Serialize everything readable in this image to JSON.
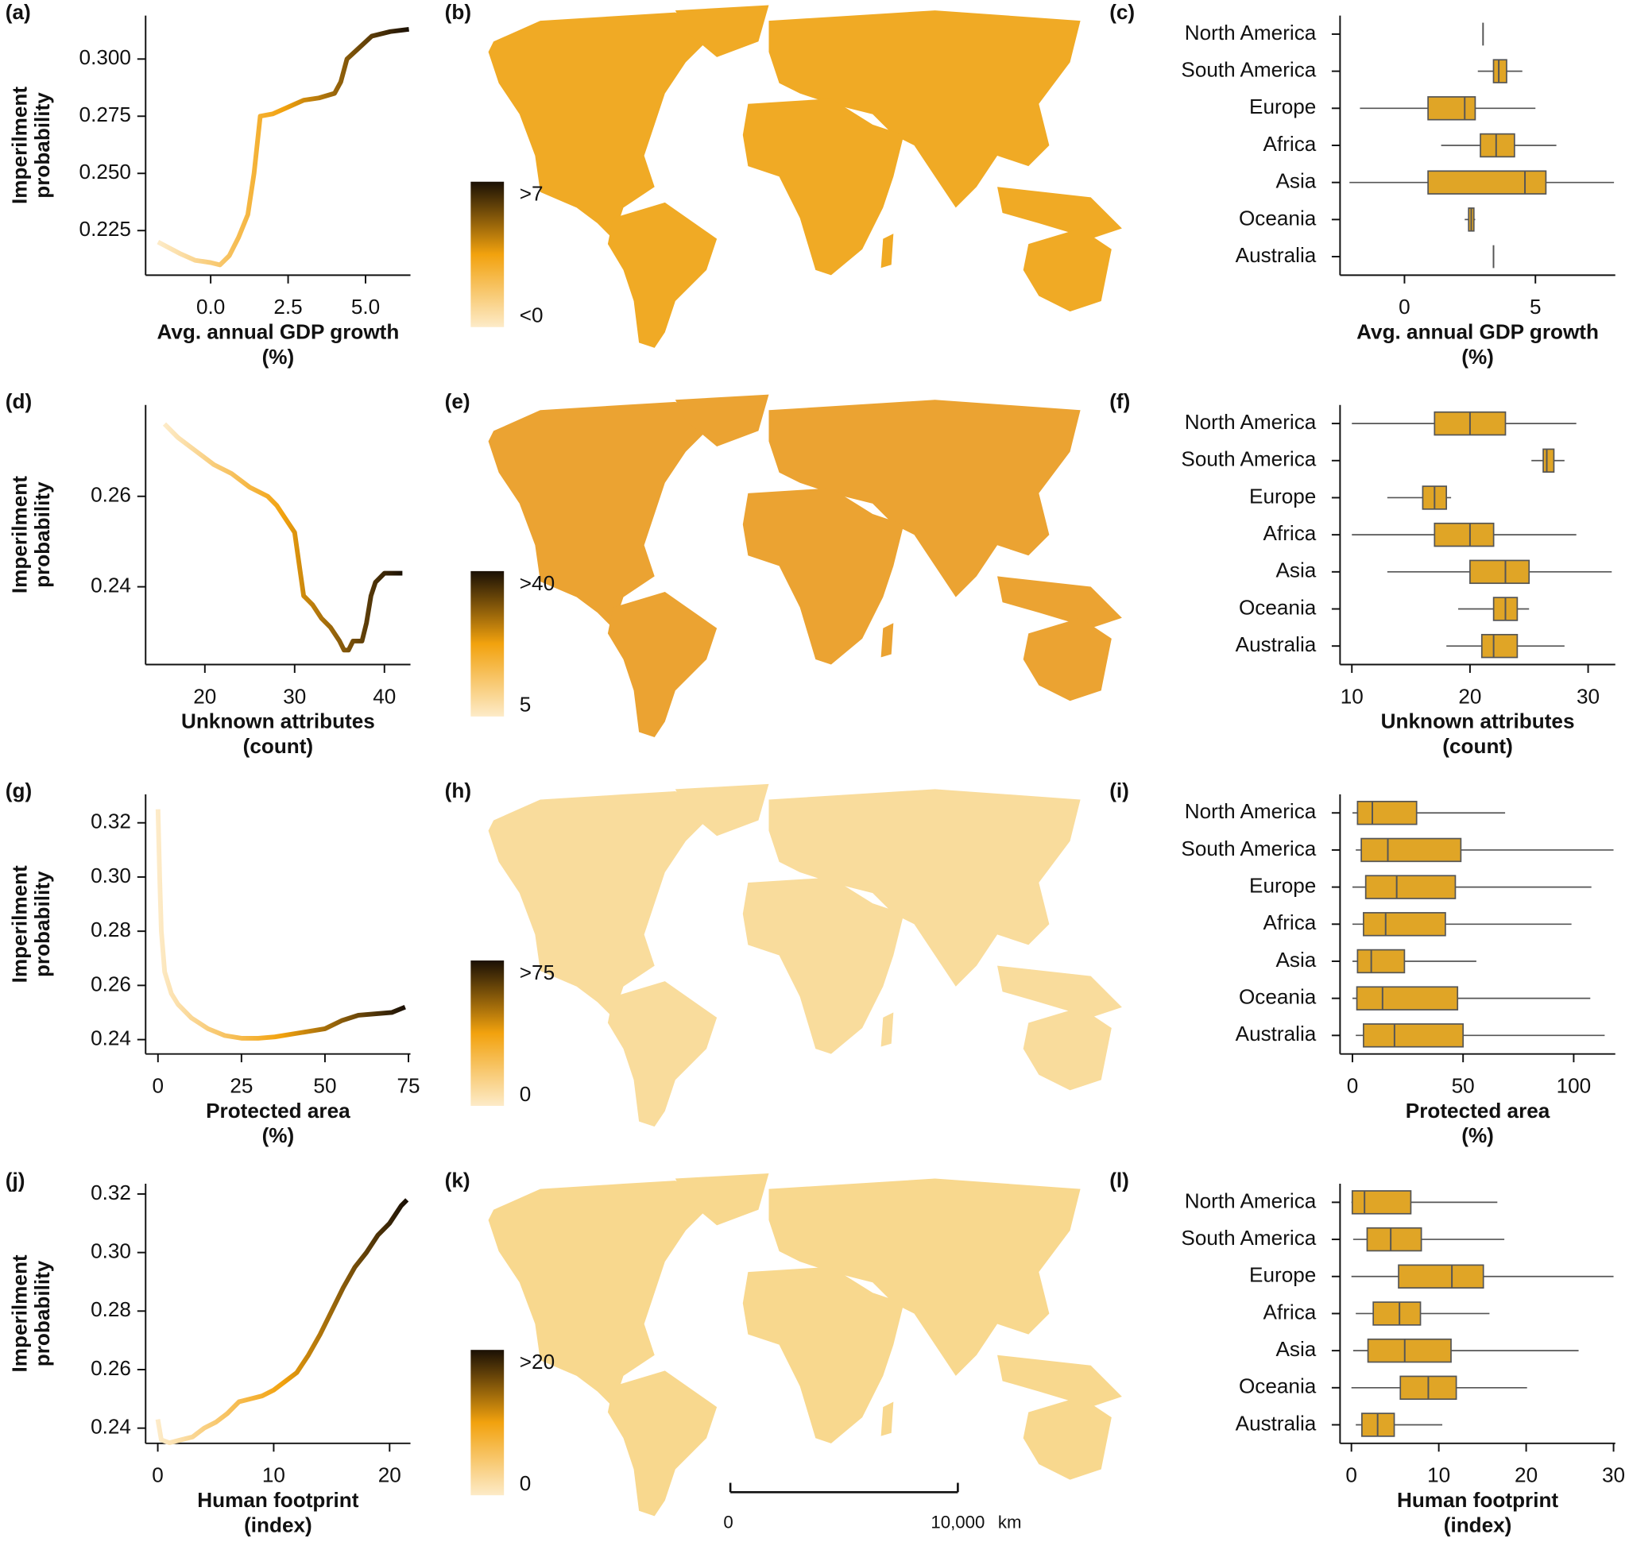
{
  "chart_data": [
    {
      "type": "line",
      "label": "(a)",
      "xlabel": [
        "Avg. annual GDP growth",
        "(%)"
      ],
      "ylabel": [
        "Imperilment",
        "probability"
      ],
      "x": [
        -1.7,
        -1.0,
        -0.5,
        0,
        0.3,
        0.6,
        0.9,
        1.2,
        1.4,
        1.6,
        2.0,
        2.5,
        3.0,
        3.5,
        4.0,
        4.2,
        4.4,
        4.8,
        5.2,
        5.8,
        6.4
      ],
      "values": [
        0.22,
        0.215,
        0.212,
        0.211,
        0.21,
        0.214,
        0.222,
        0.232,
        0.25,
        0.275,
        0.276,
        0.279,
        0.282,
        0.283,
        0.285,
        0.29,
        0.3,
        0.305,
        0.31,
        0.312,
        0.313
      ],
      "xlim": [
        -2.1,
        6.45
      ],
      "ylim": [
        0.2055,
        0.319
      ],
      "xticks": [
        {
          "value": 0,
          "label": "0.0"
        },
        2.5,
        {
          "value": 5,
          "label": "5.0"
        }
      ],
      "yticks": [
        0.225,
        {
          "value": 0.25,
          "label": "0.250"
        },
        0.275,
        {
          "value": 0.3,
          "label": "0.300"
        }
      ],
      "colormap": [
        "#fdebc8",
        "#f2a20e",
        "#1a1005"
      ]
    },
    {
      "type": "map",
      "label": "(b)",
      "colorbar_labels": [
        ">7",
        "<0"
      ],
      "colormap": [
        "#fdebc8",
        "#f2a20e",
        "#1a1005"
      ],
      "color": "#f0aa25"
    },
    {
      "type": "box",
      "label": "(c)",
      "xlabel": [
        "Avg. annual GDP growth",
        "(%)"
      ],
      "categories": [
        "North America",
        "South America",
        "Europe",
        "Africa",
        "Asia",
        "Oceania",
        "Australia"
      ],
      "min": [
        3.0,
        2.8,
        -1.7,
        1.4,
        -2.1,
        2.3,
        3.4
      ],
      "q1": [
        3.0,
        3.4,
        0.9,
        2.9,
        0.9,
        2.45,
        3.4
      ],
      "median": [
        3.0,
        3.6,
        2.3,
        3.5,
        4.6,
        2.55,
        3.4
      ],
      "q3": [
        3.0,
        3.9,
        2.7,
        4.2,
        5.4,
        2.65,
        3.4
      ],
      "max": [
        3.0,
        4.5,
        5.0,
        5.8,
        8.0,
        2.7,
        3.4
      ],
      "xlim": [
        -2.46,
        8.05
      ],
      "xticks": [
        0,
        5
      ],
      "color": "#e0a526"
    },
    {
      "type": "line",
      "label": "(d)",
      "xlabel": [
        "Unknown attributes",
        "(count)"
      ],
      "ylabel": [
        "Imperilment",
        "probability"
      ],
      "x": [
        15.5,
        17,
        19,
        21,
        23,
        25,
        27,
        28,
        29,
        30,
        30.5,
        31,
        32,
        33,
        34,
        35,
        35.5,
        36,
        36.5,
        37.5,
        38,
        38.5,
        39,
        40,
        42
      ],
      "values": [
        0.276,
        0.273,
        0.27,
        0.267,
        0.265,
        0.262,
        0.26,
        0.258,
        0.255,
        0.252,
        0.245,
        0.238,
        0.236,
        0.233,
        0.231,
        0.228,
        0.226,
        0.226,
        0.228,
        0.228,
        0.232,
        0.238,
        0.241,
        0.243,
        0.243
      ],
      "xlim": [
        13.4,
        42.9
      ],
      "ylim": [
        0.2228,
        0.2802
      ],
      "xticks": [
        20,
        30,
        40
      ],
      "yticks": [
        0.24,
        0.26
      ],
      "colormap": [
        "#fdebc8",
        "#f2a20e",
        "#1a1005"
      ]
    },
    {
      "type": "map",
      "label": "(e)",
      "colorbar_labels": [
        ">40",
        "5"
      ],
      "colormap": [
        "#fdebc8",
        "#f2a20e",
        "#1a1005"
      ],
      "color": "#eba332"
    },
    {
      "type": "box",
      "label": "(f)",
      "xlabel": [
        "Unknown attributes",
        "(count)"
      ],
      "categories": [
        "North America",
        "South America",
        "Europe",
        "Africa",
        "Asia",
        "Oceania",
        "Australia"
      ],
      "min": [
        10,
        25.2,
        13,
        10,
        13,
        19,
        18
      ],
      "q1": [
        17,
        26.2,
        16,
        17,
        20,
        22,
        21
      ],
      "median": [
        20,
        26.5,
        17,
        20,
        23,
        23,
        22
      ],
      "q3": [
        23,
        27.1,
        18,
        22,
        25,
        24,
        24
      ],
      "max": [
        29,
        28,
        18.4,
        29,
        32,
        25,
        28
      ],
      "xlim": [
        9,
        32.3
      ],
      "xticks": [
        10,
        20,
        30
      ],
      "color": "#e0a526"
    },
    {
      "type": "line",
      "label": "(g)",
      "xlabel": [
        "Protected area",
        "(%)"
      ],
      "ylabel": [
        "Imperilment",
        "probability"
      ],
      "x": [
        0,
        0.5,
        1,
        2,
        4,
        6,
        10,
        15,
        20,
        25,
        30,
        35,
        40,
        45,
        50,
        55,
        60,
        65,
        70,
        74
      ],
      "values": [
        0.325,
        0.3,
        0.28,
        0.265,
        0.257,
        0.253,
        0.248,
        0.244,
        0.2415,
        0.2405,
        0.2405,
        0.241,
        0.242,
        0.243,
        0.244,
        0.247,
        0.249,
        0.2495,
        0.25,
        0.252
      ],
      "xlim": [
        -3.7,
        75.6
      ],
      "ylim": [
        0.2347,
        0.3305
      ],
      "xticks": [
        0,
        25,
        50,
        75
      ],
      "yticks": [
        0.24,
        0.26,
        0.28,
        {
          "value": 0.3,
          "label": "0.30"
        },
        0.32
      ],
      "colormap": [
        "#fdebc8",
        "#f2a20e",
        "#1a1005"
      ]
    },
    {
      "type": "map",
      "label": "(h)",
      "colorbar_labels": [
        ">75",
        "0"
      ],
      "colormap": [
        "#fdebc8",
        "#f2a20e",
        "#1a1005"
      ],
      "color": "#f9dc9c"
    },
    {
      "type": "box",
      "label": "(i)",
      "xlabel": [
        "Protected area",
        "(%)"
      ],
      "categories": [
        "North America",
        "South America",
        "Europe",
        "Africa",
        "Asia",
        "Oceania",
        "Australia"
      ],
      "min": [
        0,
        1.5,
        0,
        0,
        0,
        0,
        1.5
      ],
      "q1": [
        2.3,
        4,
        6,
        5,
        2.3,
        2,
        5
      ],
      "median": [
        9,
        16,
        20,
        15,
        8.5,
        13.6,
        19
      ],
      "q3": [
        29,
        49,
        46.5,
        42,
        23.5,
        47.5,
        50
      ],
      "max": [
        69,
        118,
        108,
        99,
        56,
        107.5,
        114
      ],
      "xlim": [
        -5.6,
        118.8
      ],
      "xticks": [
        0,
        50,
        100
      ],
      "color": "#e0a526"
    },
    {
      "type": "line",
      "label": "(j)",
      "xlabel": [
        "Human footprint",
        "(index)"
      ],
      "ylabel": [
        "Imperilment",
        "probability"
      ],
      "x": [
        0,
        0.3,
        1,
        2,
        3,
        4,
        5,
        6,
        7,
        8,
        9,
        10,
        11,
        12,
        13,
        14,
        15,
        16,
        17,
        18,
        19,
        20,
        21,
        21.5
      ],
      "values": [
        0.243,
        0.236,
        0.235,
        0.236,
        0.237,
        0.24,
        0.242,
        0.245,
        0.249,
        0.25,
        0.251,
        0.253,
        0.256,
        0.259,
        0.265,
        0.272,
        0.28,
        0.288,
        0.295,
        0.3,
        0.306,
        0.31,
        0.316,
        0.318
      ],
      "xlim": [
        -1.05,
        21.8
      ],
      "ylim": [
        0.2348,
        0.3235
      ],
      "xticks": [
        0,
        10,
        20
      ],
      "yticks": [
        0.24,
        0.26,
        0.28,
        {
          "value": 0.3,
          "label": "0.30"
        },
        0.32
      ],
      "colormap": [
        "#fdebc8",
        "#f2a20e",
        "#1a1005"
      ]
    },
    {
      "type": "map",
      "label": "(k)",
      "colorbar_labels": [
        ">20",
        "0"
      ],
      "colormap": [
        "#fdebc8",
        "#f2a20e",
        "#1a1005"
      ],
      "color": "#f8d88e"
    },
    {
      "type": "box",
      "label": "(l)",
      "xlabel": [
        "Human footprint",
        "(index)"
      ],
      "categories": [
        "North America",
        "South America",
        "Europe",
        "Africa",
        "Asia",
        "Oceania",
        "Australia"
      ],
      "min": [
        0,
        0.2,
        0,
        0.5,
        0.2,
        0,
        0.5
      ],
      "q1": [
        0.1,
        1.8,
        5.4,
        2.5,
        1.9,
        5.6,
        1.2
      ],
      "median": [
        1.5,
        4.5,
        11.5,
        5.5,
        6.1,
        8.8,
        3
      ],
      "q3": [
        6.8,
        8,
        15.1,
        7.9,
        11.4,
        12,
        4.9
      ],
      "max": [
        16.7,
        17.5,
        30,
        15.8,
        26,
        20.1,
        10.4
      ],
      "xlim": [
        -1.3,
        30.2
      ],
      "xticks": [
        0,
        10,
        20,
        30
      ],
      "color": "#e0a526"
    }
  ],
  "scale_bar": {
    "start": "0",
    "end": "10,000",
    "unit": "km"
  }
}
